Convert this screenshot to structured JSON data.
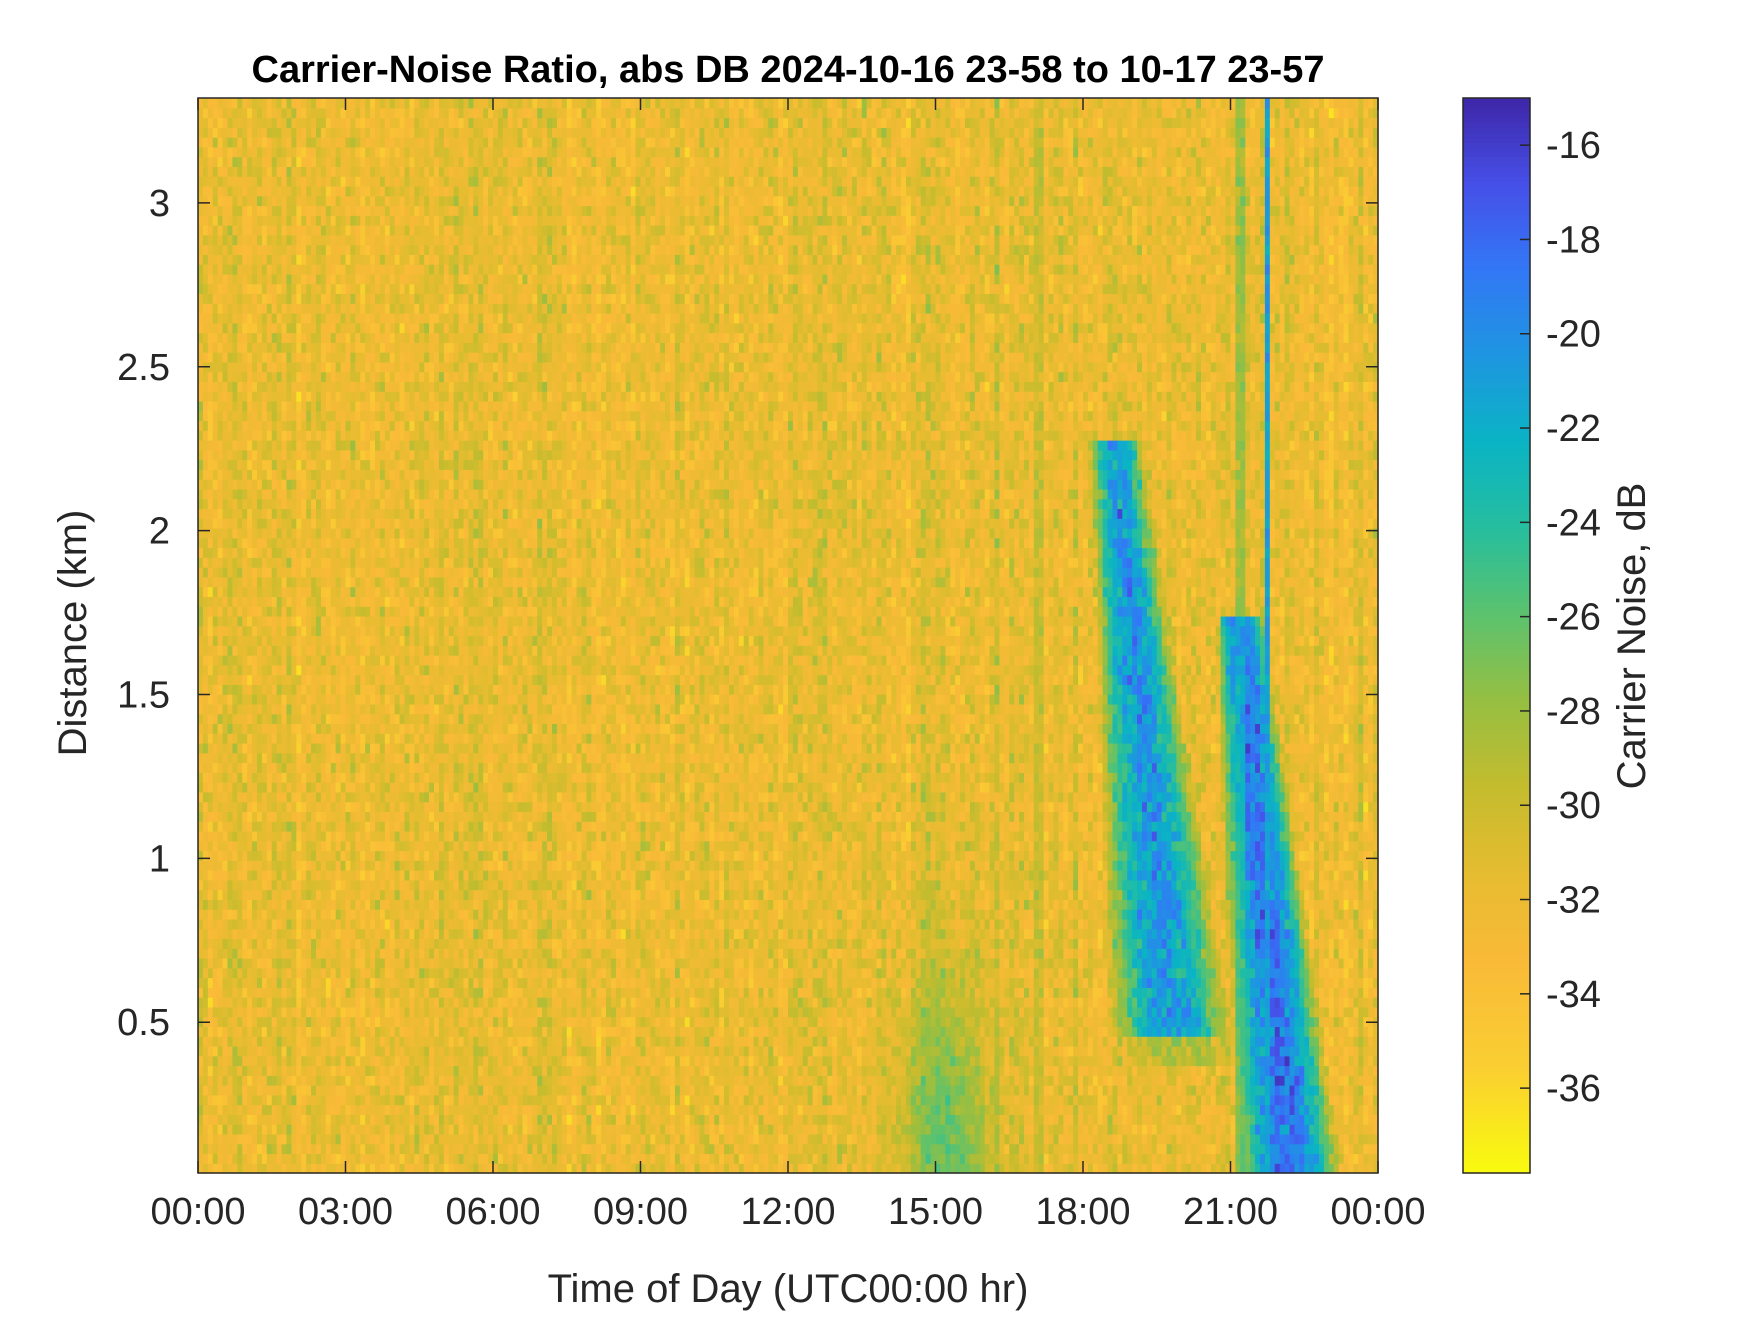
{
  "chart_data": {
    "type": "heatmap",
    "title": "Carrier-Noise Ratio, abs DB 2024-10-16 23-58 to 10-17 23-57",
    "xlabel": "Time of Day (UTC00:00 hr)",
    "ylabel": "Distance (km)",
    "x_unit": "hours",
    "xlim": [
      0,
      24
    ],
    "ylim": [
      0.04,
      3.32
    ],
    "x_ticks": [
      0,
      3,
      6,
      9,
      12,
      15,
      18,
      21,
      24
    ],
    "x_tick_labels": [
      "00:00",
      "03:00",
      "06:00",
      "09:00",
      "12:00",
      "15:00",
      "18:00",
      "21:00",
      "00:00"
    ],
    "y_ticks": [
      0.5,
      1,
      1.5,
      2,
      2.5,
      3
    ],
    "y_tick_labels": [
      "0.5",
      "1",
      "1.5",
      "2",
      "2.5",
      "3"
    ],
    "colorbar": {
      "label": "Carrier Noise, dB",
      "range": [
        -37.8,
        -15
      ],
      "ticks": [
        -16,
        -18,
        -20,
        -22,
        -24,
        -26,
        -28,
        -30,
        -32,
        -34,
        -36
      ],
      "tick_labels": [
        "-16",
        "-18",
        "-20",
        "-22",
        "-24",
        "-26",
        "-28",
        "-30",
        "-32",
        "-34",
        "-36"
      ],
      "colormap": "parula",
      "reversed": true
    },
    "background_level_db": -32,
    "features": [
      {
        "kind": "low_blob",
        "x_range": [
          13.8,
          16.6
        ],
        "y_range": [
          0.04,
          0.95
        ],
        "level_db": -26
      },
      {
        "kind": "plume",
        "x_range": [
          18.0,
          20.6
        ],
        "y_range": [
          0.45,
          2.28
        ],
        "level_db": -20.5
      },
      {
        "kind": "plume",
        "x_range": [
          20.6,
          22.9
        ],
        "y_range": [
          0.04,
          1.75
        ],
        "level_db": -18.5
      },
      {
        "kind": "vertical_streak",
        "x": 21.2,
        "level_db": -24
      },
      {
        "kind": "vertical_streak",
        "x": 21.75,
        "level_db": -21
      },
      {
        "kind": "vertical_streak",
        "x": 17.1,
        "level_db": -28
      }
    ]
  }
}
